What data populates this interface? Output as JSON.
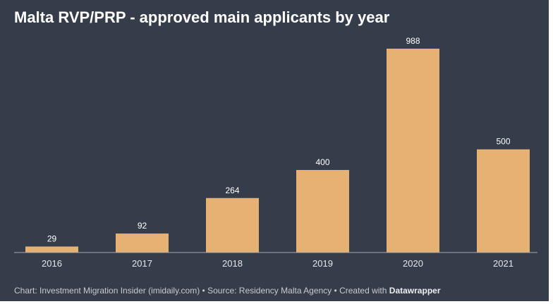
{
  "colors": {
    "page_border": "#ffffff",
    "background": "#363d4a",
    "bar": "#e5b274",
    "text": "#ffffff",
    "tick_text": "#e4e6ea",
    "axis": "#a3a8b1",
    "footer_text": "#c7cad0"
  },
  "footer": {
    "credit": "Chart: Investment Migration Insider (imidaily.com)",
    "separator": "•",
    "source": "Source: Residency Malta Agency",
    "created_with": "Created with",
    "brand": "Datawrapper"
  },
  "chart_data": {
    "type": "bar",
    "title": "Malta RVP/PRP - approved main applicants by year",
    "categories": [
      "2016",
      "2017",
      "2018",
      "2019",
      "2020",
      "2021"
    ],
    "values": [
      29,
      92,
      264,
      400,
      988,
      500
    ],
    "xlabel": "",
    "ylabel": "",
    "ylim": [
      0,
      988
    ],
    "grid": false,
    "legend": "none"
  }
}
